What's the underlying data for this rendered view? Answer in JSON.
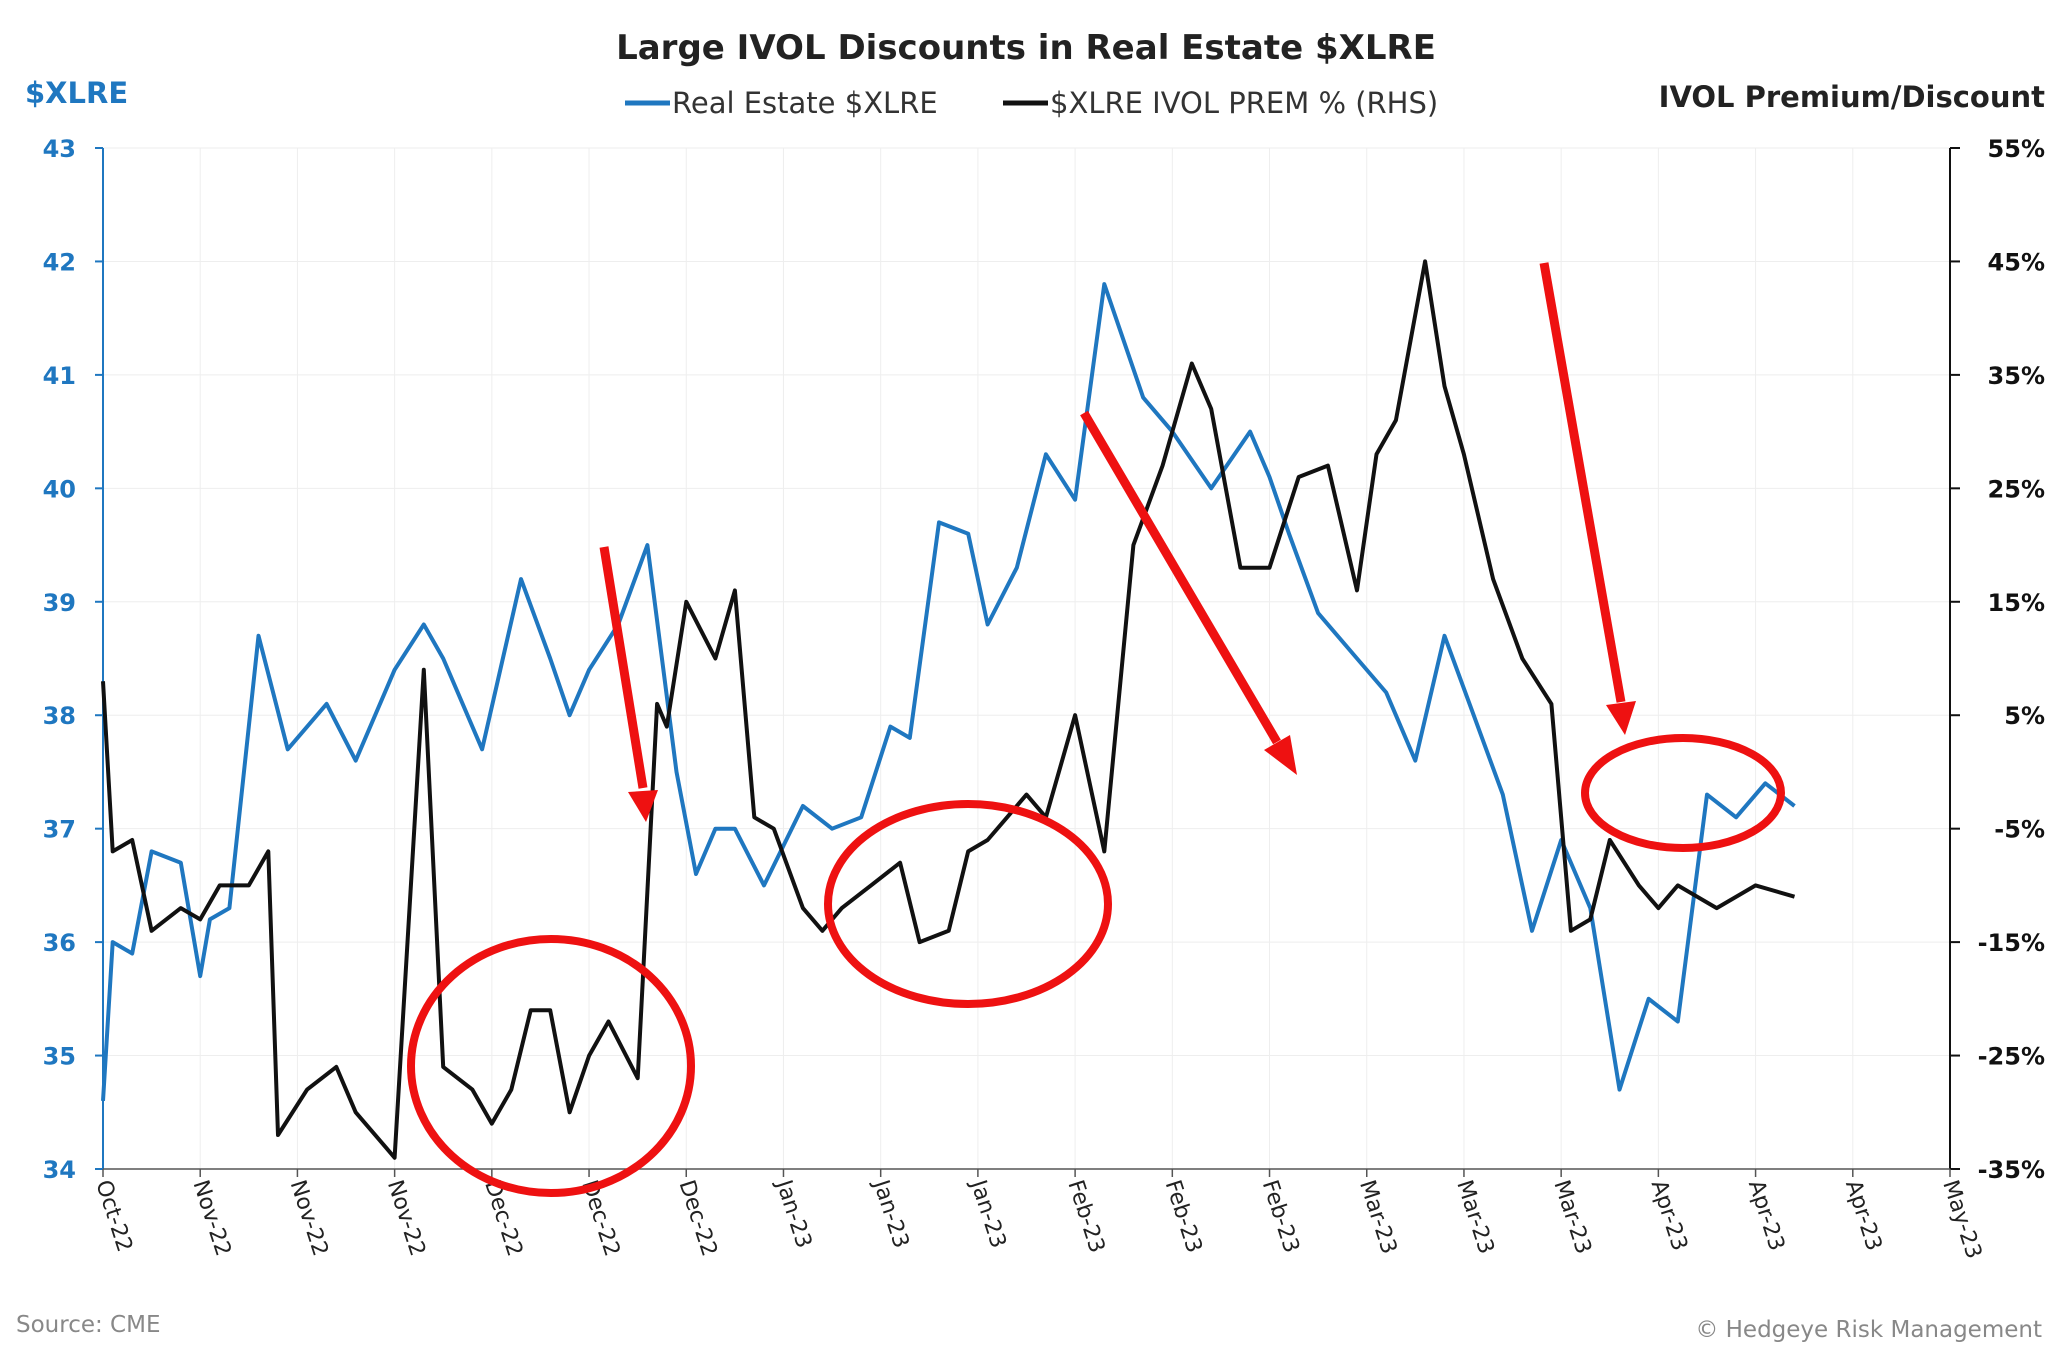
{
  "chart_data": {
    "type": "line",
    "title": "Large IVOL Discounts in Real Estate $XLRE",
    "y_left_label": "$XLRE",
    "y_right_label": "IVOL Premium/Discount",
    "y_left_lim": [
      34,
      43
    ],
    "y_left_ticks": [
      "34",
      "35",
      "36",
      "37",
      "38",
      "39",
      "40",
      "41",
      "42",
      "43"
    ],
    "y_right_lim": [
      -35,
      55
    ],
    "y_right_ticks": [
      "-35%",
      "-25%",
      "-15%",
      "-5%",
      "5%",
      "15%",
      "25%",
      "35%",
      "45%",
      "55%"
    ],
    "x_ticks": [
      "Oct-22",
      "Nov-22",
      "Nov-22",
      "Nov-22",
      "Dec-22",
      "Dec-22",
      "Dec-22",
      "Jan-23",
      "Jan-23",
      "Jan-23",
      "Feb-23",
      "Feb-23",
      "Feb-23",
      "Mar-23",
      "Mar-23",
      "Mar-23",
      "Apr-23",
      "Apr-23",
      "Apr-23",
      "May-23"
    ],
    "grid": true,
    "legend_position": "top",
    "series": [
      {
        "name": "Real Estate $XLRE",
        "axis": "left",
        "color": "#1f77c0",
        "x": [
          0,
          0.1,
          0.3,
          0.5,
          0.8,
          1,
          1.1,
          1.3,
          1.6,
          1.9,
          2.3,
          2.6,
          3,
          3.3,
          3.5,
          3.9,
          4.3,
          4.6,
          4.8,
          5,
          5.3,
          5.6,
          5.9,
          6.1,
          6.3,
          6.5,
          6.8,
          7.2,
          7.5,
          7.8,
          8.1,
          8.3,
          8.6,
          8.9,
          9.1,
          9.4,
          9.7,
          10,
          10.3,
          10.7,
          11,
          11.4,
          11.8,
          12,
          12.2,
          12.5,
          12.9,
          13.2,
          13.5,
          13.8,
          14.1,
          14.4,
          14.7,
          15,
          15.3,
          15.6,
          15.9,
          16.2,
          16.5,
          16.8,
          17.1,
          17.4
        ],
        "y": [
          34.6,
          36.0,
          35.9,
          36.8,
          36.7,
          35.7,
          36.2,
          36.3,
          38.7,
          37.7,
          38.1,
          37.6,
          38.4,
          38.8,
          38.5,
          37.7,
          39.2,
          38.5,
          38.0,
          38.4,
          38.8,
          39.5,
          37.5,
          36.6,
          37.0,
          37.0,
          36.5,
          37.2,
          37.0,
          37.1,
          37.9,
          37.8,
          39.7,
          39.6,
          38.8,
          39.3,
          40.3,
          39.9,
          41.8,
          40.8,
          40.5,
          40.0,
          40.5,
          40.1,
          39.6,
          38.9,
          38.5,
          38.2,
          37.6,
          38.7,
          38.0,
          37.3,
          36.1,
          36.9,
          36.3,
          34.7,
          35.5,
          35.3,
          37.3,
          37.1,
          37.4,
          37.2
        ]
      },
      {
        "name": "$XLRE IVOL PREM % (RHS)",
        "axis": "right",
        "color": "#111111",
        "x": [
          0,
          0.1,
          0.3,
          0.5,
          0.8,
          1,
          1.2,
          1.5,
          1.7,
          1.8,
          2.1,
          2.4,
          2.6,
          2.9,
          3.0,
          3.3,
          3.5,
          3.8,
          4.0,
          4.2,
          4.4,
          4.6,
          4.8,
          5.0,
          5.2,
          5.5,
          5.7,
          5.8,
          6.0,
          6.3,
          6.5,
          6.7,
          6.9,
          7.2,
          7.4,
          7.6,
          7.9,
          8.2,
          8.4,
          8.7,
          8.9,
          9.1,
          9.3,
          9.5,
          9.7,
          10,
          10.3,
          10.6,
          10.9,
          11.2,
          11.4,
          11.7,
          12.0,
          12.3,
          12.6,
          12.9,
          13.1,
          13.3,
          13.6,
          13.8,
          14.0,
          14.3,
          14.6,
          14.9,
          15.1,
          15.3,
          15.5,
          15.8,
          16.0,
          16.2,
          16.6,
          17.0,
          17.4
        ],
        "y": [
          8,
          -7,
          -6,
          -14,
          -12,
          -13,
          -10,
          -10,
          -7,
          -32,
          -28,
          -26,
          -30,
          -33,
          -34,
          9,
          -26,
          -28,
          -31,
          -28,
          -21,
          -21,
          -30,
          -25,
          -22,
          -27,
          6,
          4,
          15,
          10,
          16,
          -4,
          -5,
          -12,
          -14,
          -12,
          -10,
          -8,
          -15,
          -14,
          -7,
          -6,
          -4,
          -2,
          -4,
          5,
          -7,
          20,
          27,
          36,
          32,
          18,
          18,
          26,
          27,
          16,
          28,
          31,
          45,
          34,
          28,
          17,
          10,
          6,
          -14,
          -13,
          -6,
          -10,
          -12,
          -10,
          -12,
          -10,
          -11
        ]
      }
    ]
  },
  "annotations": {
    "source": "Source: CME",
    "copyright": "© Hedgeye Risk Management"
  }
}
